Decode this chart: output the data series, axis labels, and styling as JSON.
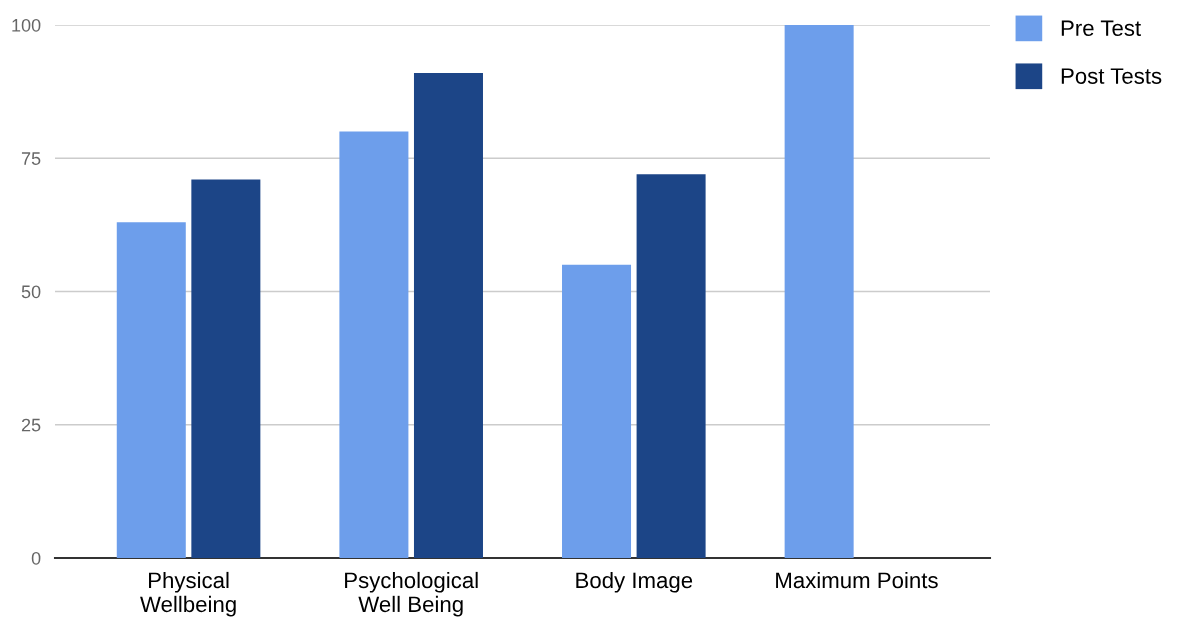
{
  "chart_data": {
    "type": "bar",
    "categories": [
      "Physical\nWellbeing",
      "Psychological\nWell Being",
      "Body Image",
      "Maximum Points"
    ],
    "series": [
      {
        "name": "Pre Test",
        "color": "#6d9eeb",
        "values": [
          63,
          80,
          55,
          100
        ]
      },
      {
        "name": "Post Tests",
        "color": "#1c4587",
        "values": [
          71,
          91,
          72,
          null
        ]
      }
    ],
    "ylim": [
      0,
      100
    ],
    "yticks": [
      0,
      25,
      50,
      75,
      100
    ],
    "grid": "y",
    "legend": "top right"
  }
}
